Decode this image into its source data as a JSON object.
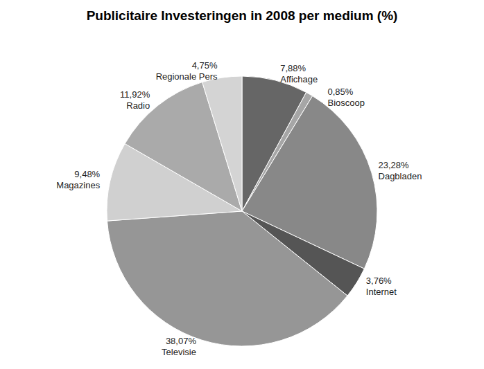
{
  "chart_data": {
    "type": "pie",
    "title": "Publicitaire Investeringen in 2008 per medium (%)",
    "categories": [
      "Affichage",
      "Bioscoop",
      "Dagbladen",
      "Internet",
      "Televisie",
      "Magazines",
      "Radio",
      "Regionale Pers"
    ],
    "values": [
      7.88,
      0.85,
      23.28,
      3.76,
      38.07,
      9.48,
      11.92,
      4.75
    ],
    "value_labels": [
      "7,88%",
      "0,85%",
      "23,28%",
      "3,76%",
      "38,07%",
      "9,48%",
      "11,92%",
      "4,75%"
    ],
    "colors": [
      "#666666",
      "#a6a6a6",
      "#888888",
      "#555555",
      "#969696",
      "#d0d0d0",
      "#aaaaaa",
      "#d4d4d4"
    ],
    "data_labels": true
  }
}
